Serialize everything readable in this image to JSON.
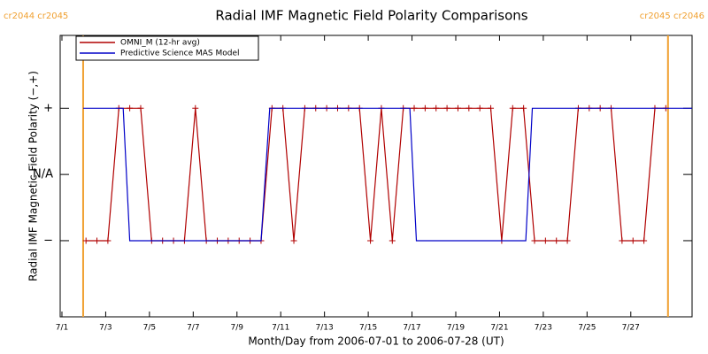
{
  "chart_data": {
    "type": "line",
    "title": "Radial IMF Magnetic Field Polarity Comparisons",
    "xlabel": "Month/Day from 2006-07-01 to 2006-07-28 (UT)",
    "ylabel": "Radial IMF Magnetic Field Polarity (−,+)",
    "xlim": [
      -0.08,
      28.8
    ],
    "ylim": [
      -2.15,
      2.1
    ],
    "xticks": [
      {
        "value": 0,
        "label": "7/1"
      },
      {
        "value": 2,
        "label": "7/3"
      },
      {
        "value": 4,
        "label": "7/5"
      },
      {
        "value": 6,
        "label": "7/7"
      },
      {
        "value": 8,
        "label": "7/9"
      },
      {
        "value": 10,
        "label": "7/11"
      },
      {
        "value": 12,
        "label": "7/13"
      },
      {
        "value": 14,
        "label": "7/15"
      },
      {
        "value": 16,
        "label": "7/17"
      },
      {
        "value": 18,
        "label": "7/19"
      },
      {
        "value": 20,
        "label": "7/21"
      },
      {
        "value": 22,
        "label": "7/23"
      },
      {
        "value": 24,
        "label": "7/25"
      },
      {
        "value": 26,
        "label": "7/27"
      }
    ],
    "yticks": [
      {
        "value": 1,
        "label": "+"
      },
      {
        "value": 0,
        "label": "N/A"
      },
      {
        "value": -1,
        "label": "−"
      }
    ],
    "legend": "upper left",
    "series": [
      {
        "name": "OMNI_M (12-hr avg)",
        "color": "#b00000",
        "marker": "+",
        "x": [
          1.1,
          1.6,
          2.1,
          2.6,
          3.1,
          3.6,
          4.1,
          4.6,
          5.1,
          5.6,
          6.1,
          6.6,
          7.1,
          7.6,
          8.1,
          8.6,
          9.1,
          9.6,
          10.1,
          10.6,
          11.1,
          11.6,
          12.1,
          12.6,
          13.1,
          13.6,
          14.1,
          14.6,
          15.1,
          15.6,
          16.1,
          16.6,
          17.1,
          17.6,
          18.1,
          18.6,
          19.1,
          19.6,
          20.1,
          20.6,
          21.1,
          21.6,
          22.1,
          22.6,
          23.1,
          23.6,
          24.1,
          24.6,
          25.1,
          25.6,
          26.1,
          26.6,
          27.1,
          27.6
        ],
        "values": [
          -1,
          -1,
          -1,
          1,
          1,
          1,
          -1,
          -1,
          -1,
          -1,
          1,
          -1,
          -1,
          -1,
          -1,
          -1,
          -1,
          1,
          1,
          -1,
          1,
          1,
          1,
          1,
          1,
          1,
          -1,
          1,
          -1,
          1,
          1,
          1,
          1,
          1,
          1,
          1,
          1,
          1,
          -1,
          1,
          1,
          -1,
          -1,
          -1,
          -1,
          1,
          1,
          1,
          1,
          -1,
          -1,
          -1,
          1,
          1
        ]
      },
      {
        "name": "Predictive Science MAS Model",
        "color": "#0000c8",
        "x": [
          0.97,
          2.8,
          3.1,
          9.1,
          9.5,
          15.9,
          16.2,
          21.2,
          21.5,
          28.8
        ],
        "values": [
          1,
          1,
          -1,
          -1,
          1,
          1,
          -1,
          -1,
          1,
          1
        ]
      }
    ],
    "markers": [
      {
        "x": 0.97,
        "label": "cr2044 cr2045",
        "color": "#f0a030"
      },
      {
        "x": 27.7,
        "label": "cr2045 cr2046",
        "color": "#f0a030"
      }
    ]
  }
}
